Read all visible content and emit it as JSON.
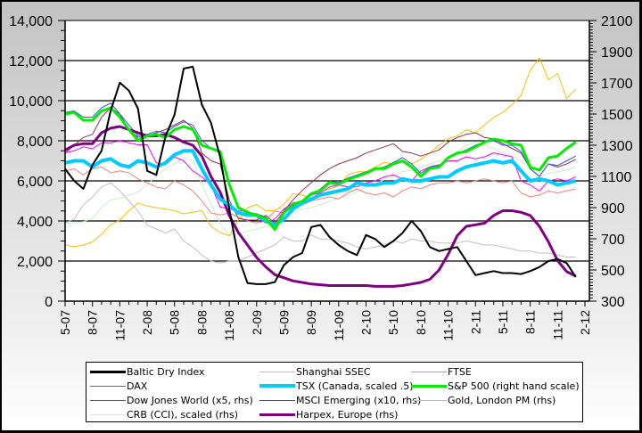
{
  "chart_data": {
    "type": "line",
    "title": "",
    "xlabel": "",
    "ylabel_left": "",
    "ylabel_right": "",
    "y_left": {
      "range": [
        0,
        14000
      ],
      "ticks": [
        "0",
        "2,000",
        "4,000",
        "6,000",
        "8,000",
        "10,000",
        "12,000",
        "14,000"
      ],
      "tick_values": [
        0,
        2000,
        4000,
        6000,
        8000,
        10000,
        12000,
        14000
      ]
    },
    "y_right": {
      "range": [
        300,
        2100
      ],
      "ticks": [
        "300",
        "500",
        "700",
        "900",
        "1100",
        "1300",
        "1500",
        "1700",
        "1900",
        "2100"
      ],
      "tick_values": [
        300,
        500,
        700,
        900,
        1100,
        1300,
        1500,
        1700,
        1900,
        2100
      ]
    },
    "x_tick_labels": [
      "5-07",
      "8-07",
      "11-07",
      "2-08",
      "5-08",
      "8-08",
      "11-08",
      "2-09",
      "5-09",
      "8-09",
      "11-09",
      "2-10",
      "5-10",
      "8-10",
      "11-10",
      "2-11",
      "5-11",
      "8-11",
      "11-11",
      "2-12"
    ],
    "x_start_month": "5-07",
    "x_range_months": [
      0,
      57
    ],
    "grid": "horizontal major gridlines",
    "legend_position": "bottom",
    "series": [
      {
        "name": "Baltic Dry Index",
        "axis": "left",
        "color": "#000000",
        "width": 2,
        "values": [
          6600,
          6000,
          5600,
          6800,
          7500,
          9500,
          10900,
          10500,
          9600,
          6500,
          6300,
          8200,
          9300,
          11600,
          11700,
          9800,
          8900,
          7200,
          4600,
          2200,
          900,
          850,
          850,
          950,
          1800,
          2200,
          2400,
          3700,
          3800,
          3200,
          2800,
          2500,
          2300,
          3300,
          3100,
          2700,
          3000,
          3400,
          4000,
          3500,
          2700,
          2500,
          2600,
          2700,
          2000,
          1300,
          1400,
          1500,
          1400,
          1400,
          1350,
          1500,
          1700,
          2000,
          2100,
          1900,
          1200
        ]
      },
      {
        "name": "Shanghai SSEC",
        "axis": "left",
        "color": "#c0c0c0",
        "width": 1,
        "values": [
          3900,
          4100,
          4800,
          5200,
          5700,
          5900,
          5500,
          5000,
          4500,
          3800,
          3600,
          3400,
          3600,
          3000,
          2700,
          2300,
          2000,
          1900,
          2000,
          2000,
          2200,
          2400,
          2600,
          2800,
          3200,
          3000,
          3000,
          3300,
          3100,
          3100,
          3000,
          2900,
          2700,
          2600,
          2700,
          2800,
          3000,
          2900,
          3100,
          3000,
          3000,
          2900,
          2900,
          2900,
          3000,
          2900,
          2800,
          2800,
          2700,
          2600,
          2500,
          2500,
          2400,
          2400,
          2300,
          2200,
          2200
        ]
      },
      {
        "name": "FTSE",
        "axis": "left",
        "color": "#f08080",
        "width": 1,
        "values": [
          6500,
          6600,
          6300,
          6600,
          6700,
          6400,
          6500,
          6400,
          6100,
          5900,
          5700,
          5600,
          6000,
          5800,
          5500,
          5000,
          4400,
          4300,
          4400,
          4200,
          4000,
          3900,
          4000,
          4500,
          4400,
          4700,
          4800,
          5000,
          5100,
          5200,
          5100,
          5400,
          5600,
          5400,
          5300,
          5400,
          5200,
          5500,
          5700,
          5600,
          5800,
          5900,
          5900,
          6000,
          5900,
          6000,
          6100,
          6000,
          5900,
          6000,
          5400,
          5200,
          5300,
          5500,
          5400,
          5500,
          5600
        ]
      },
      {
        "name": "DAX",
        "axis": "left",
        "color": "#ff00ff",
        "width": 1,
        "values": [
          7400,
          7500,
          7700,
          7600,
          7900,
          7900,
          8000,
          7900,
          7800,
          7800,
          6900,
          6800,
          7200,
          7000,
          6500,
          6200,
          5800,
          4700,
          4600,
          4500,
          4500,
          4200,
          3900,
          4100,
          4600,
          4900,
          5000,
          5300,
          5400,
          5700,
          5800,
          5700,
          5700,
          5900,
          6000,
          6200,
          6300,
          6100,
          6000,
          6500,
          6700,
          6800,
          7000,
          7000,
          7200,
          7100,
          7200,
          7400,
          7300,
          7200,
          6000,
          5800,
          5500,
          6000,
          6100,
          6000,
          6200
        ]
      },
      {
        "name": "TSX (Canada, scaled .5)",
        "axis": "left",
        "color": "#00ccff",
        "width": 4,
        "values": [
          6900,
          7000,
          7000,
          6700,
          7000,
          7100,
          6800,
          6700,
          7000,
          6900,
          6700,
          6900,
          7300,
          7500,
          7500,
          6600,
          5800,
          5100,
          4800,
          4400,
          4300,
          4300,
          4000,
          3800,
          4100,
          4600,
          4900,
          5100,
          5300,
          5400,
          5500,
          5600,
          5900,
          5800,
          5800,
          5900,
          5900,
          6100,
          6000,
          6000,
          6100,
          6200,
          6200,
          6500,
          6700,
          6800,
          6900,
          7000,
          6900,
          7000,
          6500,
          6000,
          6100,
          6000,
          5800,
          5900,
          6000
        ]
      },
      {
        "name": "S&P 500 (right hand scale)",
        "axis": "right",
        "color": "#00ee00",
        "width": 3,
        "values": [
          1500,
          1510,
          1460,
          1460,
          1520,
          1540,
          1480,
          1400,
          1330,
          1360,
          1370,
          1350,
          1400,
          1420,
          1400,
          1300,
          1280,
          1260,
          1050,
          900,
          870,
          850,
          830,
          760,
          870,
          920,
          940,
          990,
          1010,
          1060,
          1050,
          1080,
          1100,
          1120,
          1150,
          1150,
          1180,
          1200,
          1160,
          1100,
          1150,
          1160,
          1220,
          1250,
          1260,
          1290,
          1320,
          1340,
          1330,
          1310,
          1300,
          1160,
          1140,
          1220,
          1230,
          1280,
          1320
        ]
      },
      {
        "name": "Dow Jones World (x5, rhs)",
        "axis": "right",
        "color": "#3355dd",
        "width": 1,
        "values": [
          1510,
          1520,
          1480,
          1480,
          1540,
          1570,
          1500,
          1430,
          1360,
          1370,
          1390,
          1380,
          1420,
          1450,
          1430,
          1330,
          1280,
          1250,
          1040,
          900,
          870,
          860,
          840,
          770,
          860,
          910,
          940,
          980,
          1020,
          1070,
          1060,
          1090,
          1110,
          1130,
          1150,
          1160,
          1190,
          1220,
          1180,
          1120,
          1160,
          1170,
          1220,
          1250,
          1270,
          1300,
          1320,
          1330,
          1300,
          1300,
          1260,
          1150,
          1100,
          1180,
          1170,
          1200,
          1230
        ]
      },
      {
        "name": "MSCI Emerging (x10, rhs)",
        "axis": "right",
        "color": "#883355",
        "width": 1,
        "values": [
          1250,
          1300,
          1350,
          1370,
          1480,
          1540,
          1500,
          1400,
          1350,
          1360,
          1380,
          1400,
          1430,
          1460,
          1410,
          1250,
          1200,
          1180,
          950,
          830,
          820,
          820,
          850,
          800,
          880,
          950,
          1010,
          1060,
          1110,
          1150,
          1180,
          1200,
          1220,
          1250,
          1270,
          1290,
          1310,
          1260,
          1250,
          1230,
          1250,
          1270,
          1320,
          1350,
          1370,
          1380,
          1350,
          1340,
          1310,
          1280,
          1250,
          1150,
          1100,
          1180,
          1160,
          1180,
          1210
        ]
      },
      {
        "name": "Gold, London PM (rhs)",
        "axis": "right",
        "color": "#f5c000",
        "width": 1,
        "values": [
          660,
          650,
          660,
          680,
          730,
          790,
          820,
          880,
          930,
          910,
          900,
          890,
          880,
          860,
          870,
          880,
          780,
          740,
          720,
          820,
          900,
          920,
          880,
          880,
          920,
          990,
          980,
          960,
          1000,
          1020,
          1040,
          1110,
          1130,
          1130,
          1160,
          1190,
          1180,
          1200,
          1180,
          1210,
          1250,
          1300,
          1340,
          1360,
          1400,
          1380,
          1430,
          1480,
          1510,
          1560,
          1620,
          1780,
          1860,
          1720,
          1760,
          1600,
          1660
        ]
      },
      {
        "name": "CRB (CCI), scaled (rhs)",
        "axis": "right",
        "color": "#c8f0c8",
        "width": 1,
        "values": [
          800,
          800,
          810,
          830,
          900,
          950,
          960,
          980,
          1000,
          1050,
          1100,
          1150,
          1180,
          1220,
          1200,
          1050,
          920,
          800,
          720,
          730,
          750,
          760,
          780,
          800,
          830,
          870,
          890,
          900,
          920,
          940,
          960,
          980,
          1000,
          1030,
          1050,
          1080,
          1100,
          1130,
          1140,
          1160,
          1180,
          1200,
          1220,
          1260,
          1300,
          1320,
          1300,
          1280,
          1250,
          1230,
          1200,
          1150,
          1100,
          1120,
          1130,
          1140,
          1160
        ]
      },
      {
        "name": "Harpex, Europe (rhs)",
        "axis": "right",
        "color": "#800080",
        "width": 3,
        "values": [
          1270,
          1300,
          1310,
          1310,
          1380,
          1410,
          1420,
          1400,
          1380,
          1360,
          1360,
          1370,
          1350,
          1320,
          1300,
          1230,
          1100,
          1000,
          850,
          740,
          660,
          580,
          520,
          470,
          450,
          430,
          420,
          410,
          405,
          400,
          400,
          400,
          400,
          400,
          395,
          395,
          395,
          400,
          410,
          420,
          440,
          500,
          600,
          720,
          780,
          790,
          800,
          850,
          880,
          880,
          870,
          850,
          780,
          680,
          560,
          490,
          460
        ]
      }
    ]
  },
  "legend": {
    "items": [
      {
        "label": "Baltic Dry Index"
      },
      {
        "label": "Shanghai SSEC"
      },
      {
        "label": "FTSE"
      },
      {
        "label": "DAX"
      },
      {
        "label": "TSX (Canada, scaled .5)"
      },
      {
        "label": "S&P 500 (right hand scale)"
      },
      {
        "label": "Dow Jones World (x5, rhs)"
      },
      {
        "label": "MSCI Emerging (x10, rhs)"
      },
      {
        "label": "Gold, London PM (rhs)"
      },
      {
        "label": "CRB (CCI), scaled (rhs)"
      },
      {
        "label": "Harpex, Europe (rhs)"
      }
    ]
  }
}
